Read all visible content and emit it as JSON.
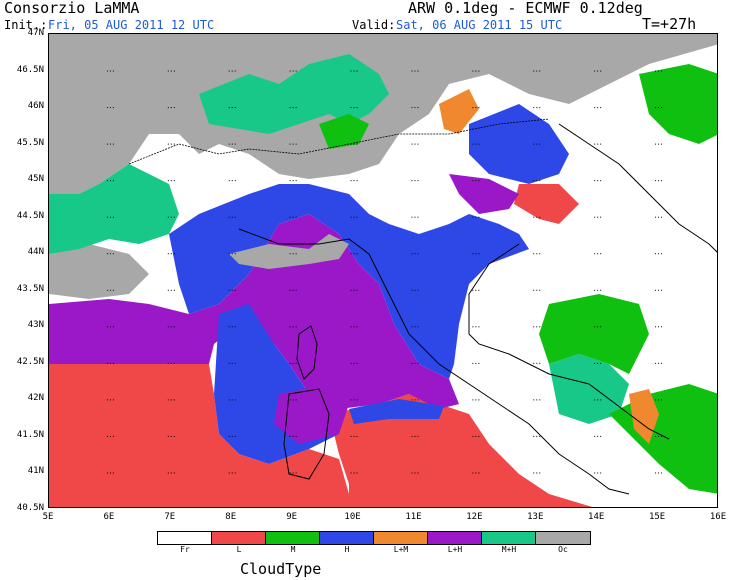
{
  "header": {
    "org": "Consorzio LaMMA",
    "model": "ARW 0.1deg - ECMWF 0.12deg",
    "init_label": "Init.:",
    "init_value": "Fri, 05 AUG 2011   12 UTC",
    "valid_label": "Valid:",
    "valid_value": "Sat, 06 AUG 2011   15 UTC",
    "lead_time": "T=+27h"
  },
  "axes": {
    "lat_labels": [
      "47N",
      "46.5N",
      "46N",
      "45.5N",
      "45N",
      "44.5N",
      "44N",
      "43.5N",
      "43N",
      "42.5N",
      "42N",
      "41.5N",
      "41N",
      "40.5N"
    ],
    "lon_labels": [
      "5E",
      "6E",
      "7E",
      "8E",
      "9E",
      "10E",
      "11E",
      "12E",
      "13E",
      "14E",
      "15E",
      "16E"
    ],
    "lat_range": [
      40.5,
      47
    ],
    "lon_range": [
      5,
      16
    ]
  },
  "map": {
    "colors": {
      "Fr": "#ffffff",
      "L": "#f04848",
      "M": "#10c010",
      "H": "#2e48e8",
      "LM": "#f08830",
      "LH": "#9a18c8",
      "MH": "#18c888",
      "Oc": "#a8a8a8"
    }
  },
  "legend": {
    "title": "CloudType",
    "items": [
      {
        "label": "Fr",
        "color": "#ffffff"
      },
      {
        "label": "L",
        "color": "#f04848"
      },
      {
        "label": "M",
        "color": "#10c010"
      },
      {
        "label": "H",
        "color": "#2e48e8"
      },
      {
        "label": "L+M",
        "color": "#f08830"
      },
      {
        "label": "L+H",
        "color": "#9a18c8"
      },
      {
        "label": "M+H",
        "color": "#18c888"
      },
      {
        "label": "Oc",
        "color": "#a8a8a8"
      }
    ]
  }
}
